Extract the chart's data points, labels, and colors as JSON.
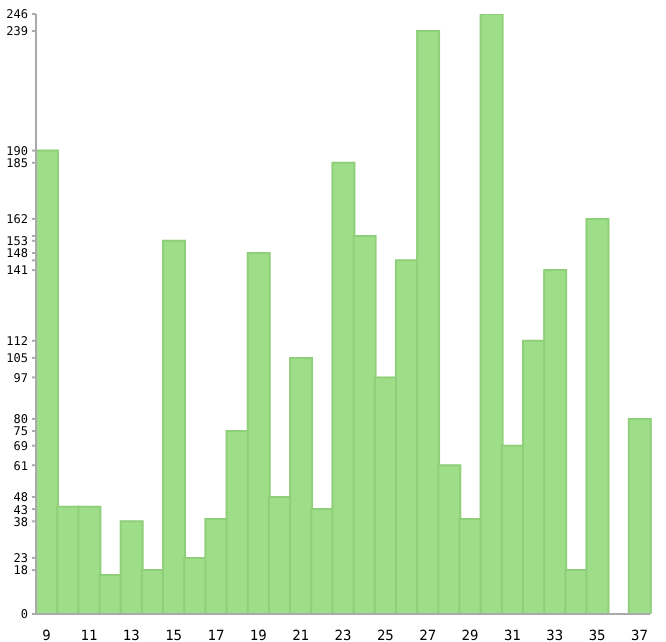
{
  "chart_data": {
    "type": "bar",
    "categories": [
      "9",
      null,
      "11",
      null,
      "13",
      null,
      "15",
      null,
      "17",
      null,
      "19",
      null,
      "21",
      null,
      "23",
      null,
      "25",
      null,
      "27",
      null,
      "29",
      null,
      "31",
      null,
      "33",
      null,
      "35",
      null,
      "37"
    ],
    "values": [
      190,
      44,
      44,
      16,
      38,
      18,
      153,
      23,
      39,
      75,
      148,
      48,
      105,
      43,
      185,
      155,
      97,
      145,
      239,
      61,
      39,
      246,
      69,
      112,
      141,
      18,
      162,
      0,
      80
    ],
    "color": "#9ede88",
    "ylim": [
      0,
      246
    ],
    "yticks": [
      0,
      18,
      23,
      38,
      43,
      48,
      61,
      69,
      75,
      80,
      97,
      105,
      112,
      141,
      {
        "value": 145,
        "label": null
      },
      148,
      153,
      {
        "value": 155,
        "label": null
      },
      162,
      185,
      190,
      239,
      246
    ],
    "grid": false
  }
}
